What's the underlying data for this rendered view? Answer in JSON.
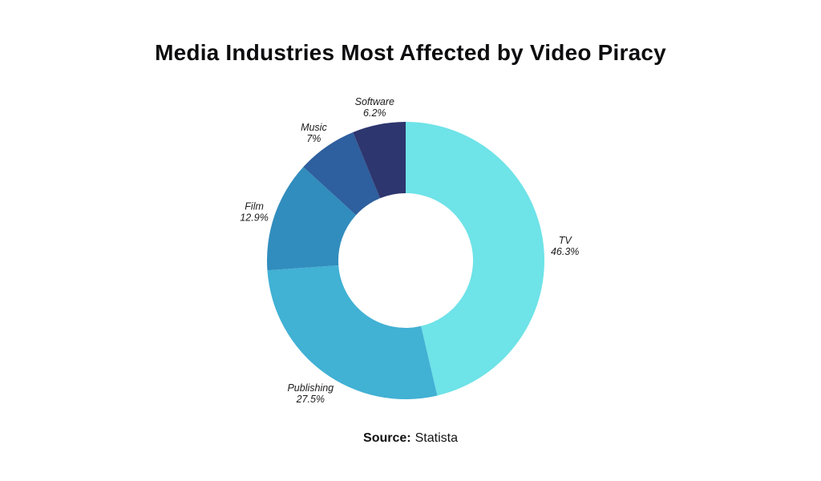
{
  "title": "Media Industries Most Affected by Video Piracy",
  "source": {
    "label": "Source:",
    "value": "Statista"
  },
  "chart_data": {
    "type": "pie",
    "donut": true,
    "title": "Media Industries Most Affected by Video Piracy",
    "categories": [
      "TV",
      "Publishing",
      "Film",
      "Music",
      "Software"
    ],
    "values": [
      46.3,
      27.5,
      12.9,
      7,
      6.2
    ],
    "value_labels": [
      "46.3%",
      "27.5%",
      "12.9%",
      "7%",
      "6.2%"
    ],
    "colors": [
      "#6ee3e8",
      "#41b1d4",
      "#318dbd",
      "#2e5f9e",
      "#2d366e"
    ],
    "start_angle_deg": 0,
    "direction": "clockwise",
    "inner_radius_ratio": 0.485,
    "legend": "none",
    "label_position": "outside",
    "label_style": "italic",
    "source_text": "Source: Statista",
    "background": "#ffffff"
  }
}
